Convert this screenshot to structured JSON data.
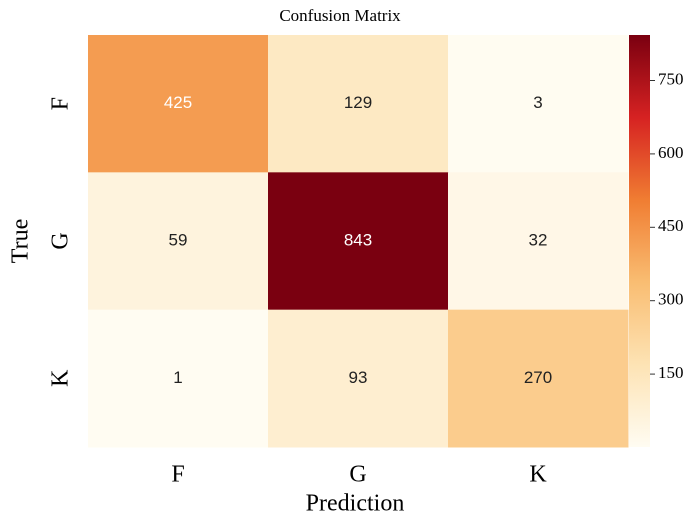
{
  "chart_data": {
    "type": "heatmap",
    "title": "Confusion Matrix",
    "xlabel": "Prediction",
    "ylabel": "True",
    "x_categories": [
      "F",
      "G",
      "K"
    ],
    "y_categories": [
      "F",
      "G",
      "K"
    ],
    "values": [
      [
        425,
        129,
        3
      ],
      [
        59,
        843,
        32
      ],
      [
        1,
        93,
        270
      ]
    ],
    "clim": [
      1,
      843
    ],
    "cticks": [
      150,
      300,
      450,
      600,
      750
    ],
    "colormap": [
      "#fffcf2",
      "#fde3b4",
      "#f9bd72",
      "#f07d32",
      "#d62222",
      "#7a0010"
    ]
  }
}
